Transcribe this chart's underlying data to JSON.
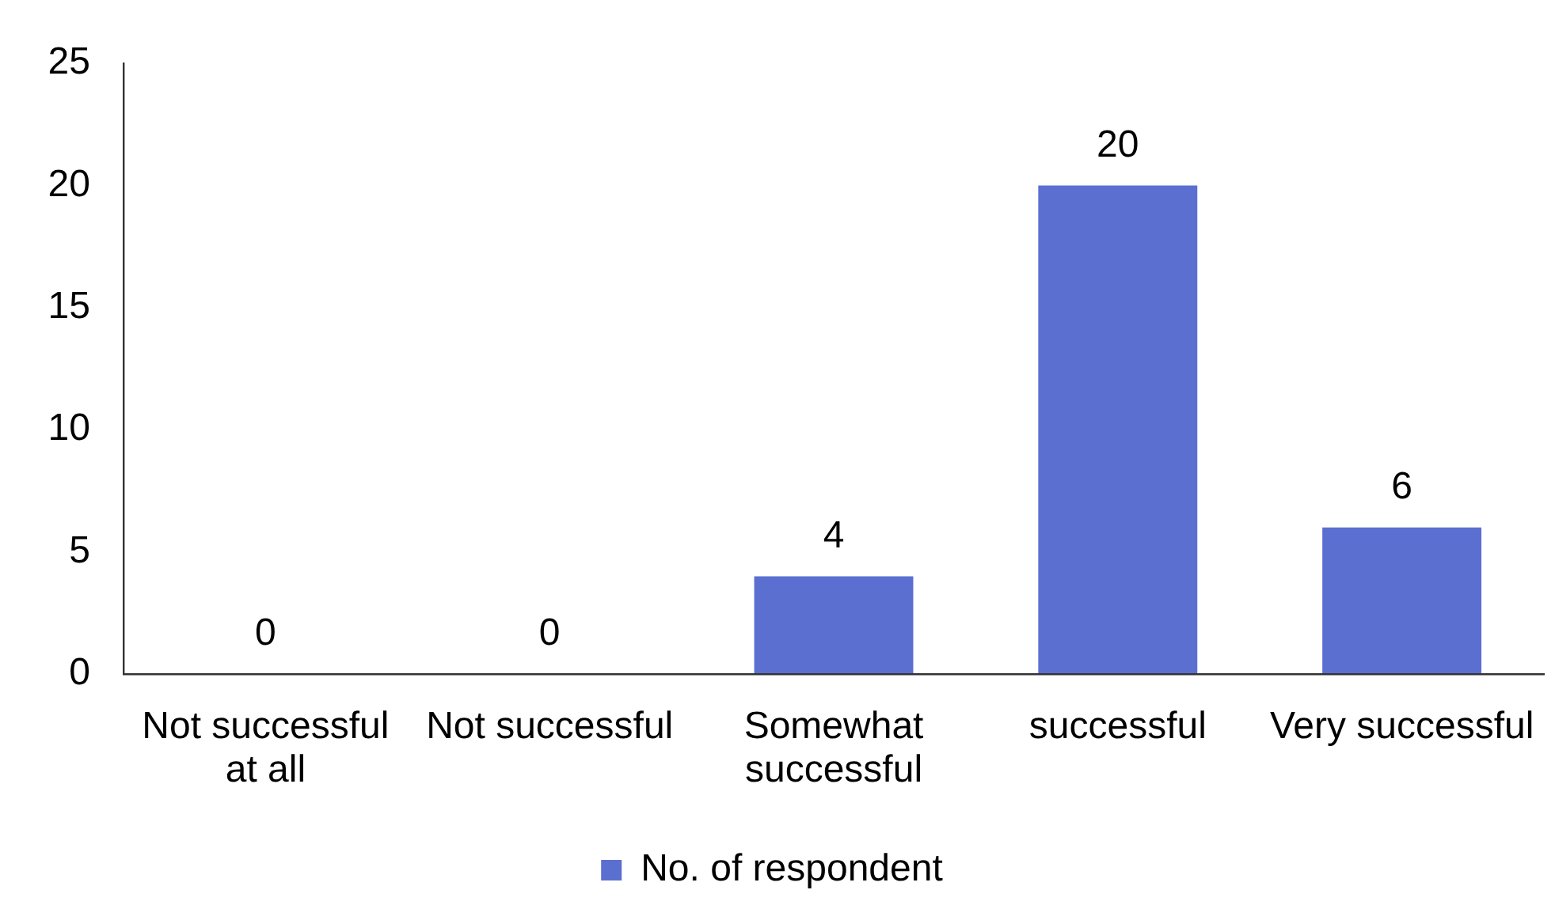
{
  "chart_data": {
    "type": "bar",
    "categories": [
      "Not successful at all",
      "Not successful",
      "Somewhat successful",
      "successful",
      "Very successful"
    ],
    "series": [
      {
        "name": "No. of respondent",
        "color": "#5b6fd1",
        "values": [
          0,
          0,
          4,
          20,
          6
        ]
      }
    ],
    "ylim": [
      0,
      25
    ],
    "yticks": [
      0,
      5,
      10,
      15,
      20,
      25
    ],
    "legend": "bottom",
    "data_labels": true
  }
}
